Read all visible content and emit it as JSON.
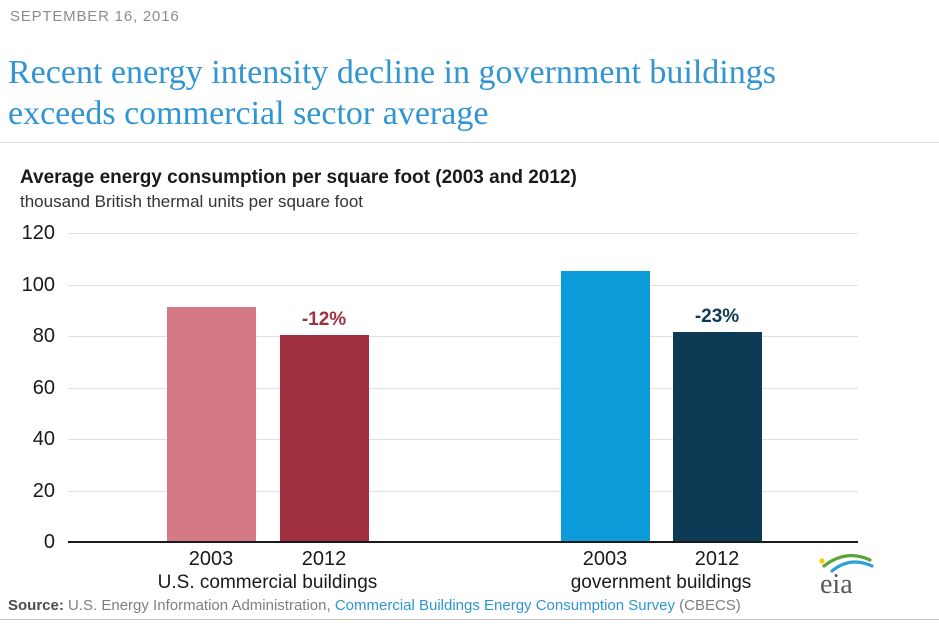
{
  "page": {
    "date": "SEPTEMBER 16, 2016",
    "title_line1": "Recent energy intensity decline in government buildings",
    "title_line2": "exceeds commercial sector average",
    "title_color": "#3095d2"
  },
  "chart_data": {
    "type": "bar",
    "title": "Average energy consumption per square foot (2003 and 2012)",
    "subtitle": "thousand British thermal units per square foot",
    "ylim": [
      0,
      120
    ],
    "ytick_step": 20,
    "grid": true,
    "axis_color": "#1a1a1a",
    "gridline_color": "#e0e0e0",
    "groups": [
      {
        "label": "U.S. commercial buildings"
      },
      {
        "label": "government buildings"
      }
    ],
    "bars": [
      {
        "group": 0,
        "x_label": "2003",
        "value": 91,
        "color": "#d57a85"
      },
      {
        "group": 0,
        "x_label": "2012",
        "value": 80,
        "color": "#a02f3f",
        "annotation": "-12%",
        "annotation_color": "#a02f3f"
      },
      {
        "group": 1,
        "x_label": "2003",
        "value": 105,
        "color": "#0d9cda"
      },
      {
        "group": 1,
        "x_label": "2012",
        "value": 81,
        "color": "#0d3a55",
        "annotation": "-23%",
        "annotation_color": "#0d3a55"
      }
    ]
  },
  "logo": {
    "text": "eia",
    "text_color": "#58595b",
    "arc_green": "#5aa338",
    "arc_blue": "#2c9fd6",
    "dot_yellow": "#f2cd00"
  },
  "source": {
    "prefix": "Source:",
    "org": " U.S. Energy Information Administration, ",
    "link": "Commercial Buildings Energy Consumption Survey",
    "link_color": "#3095d2",
    "suffix": " (CBECS)"
  }
}
